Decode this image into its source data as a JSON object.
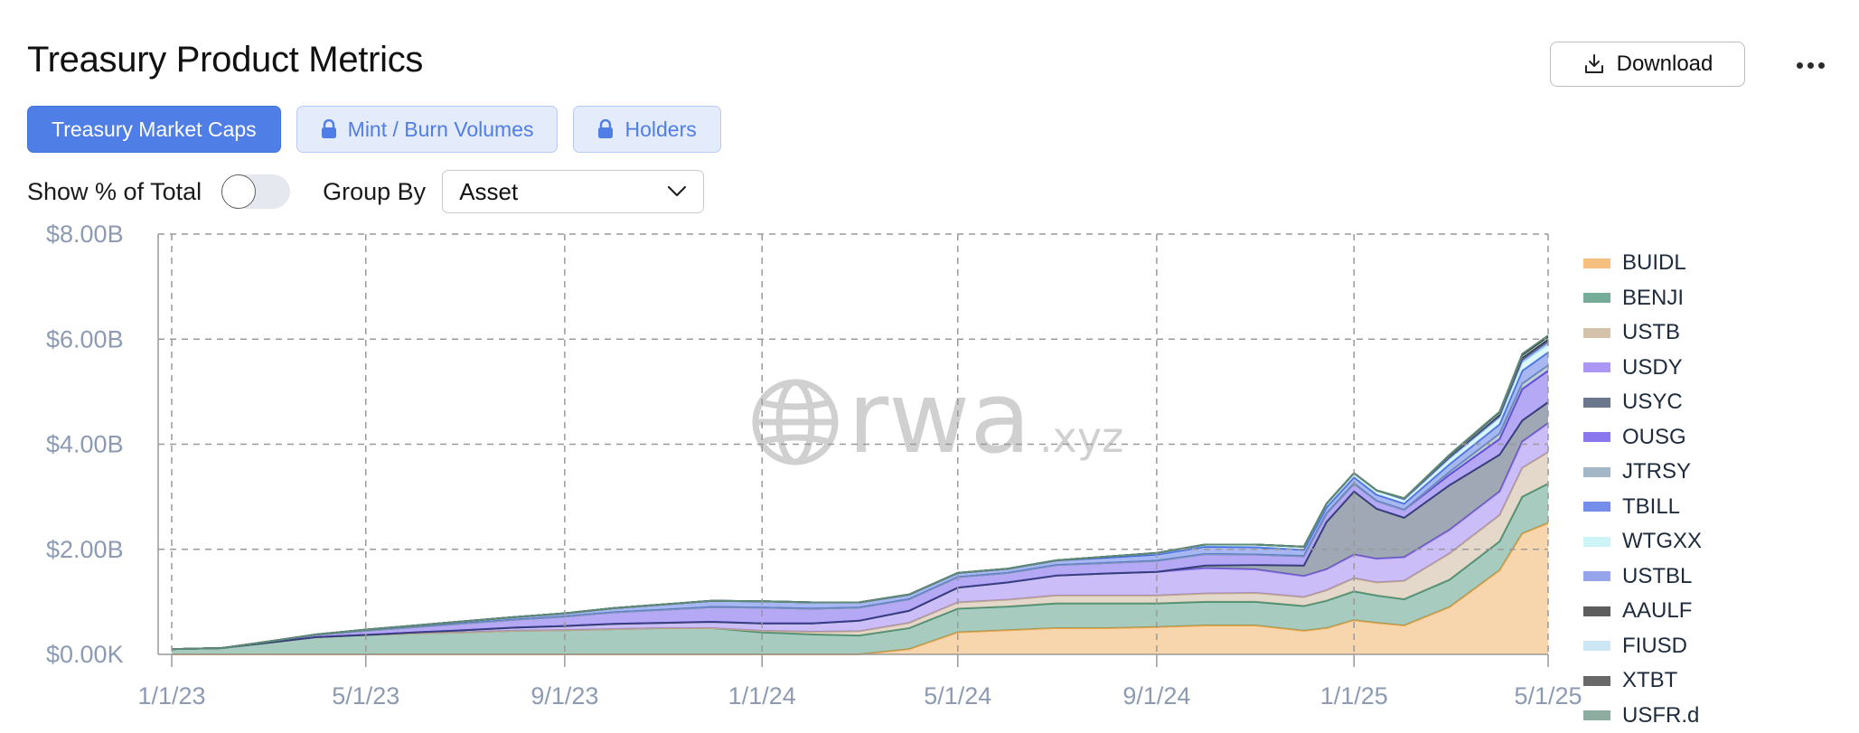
{
  "header": {
    "title": "Treasury Product Metrics",
    "download_label": "Download",
    "download_icon": "download-icon",
    "more_icon": "more-horizontal-icon"
  },
  "tabs": [
    {
      "label": "Treasury Market Caps",
      "active": true,
      "locked": false
    },
    {
      "label": "Mint / Burn Volumes",
      "active": false,
      "locked": true
    },
    {
      "label": "Holders",
      "active": false,
      "locked": true
    }
  ],
  "controls": {
    "show_pct_label": "Show % of Total",
    "show_pct_on": false,
    "group_by_label": "Group By",
    "group_by_value": "Asset"
  },
  "watermark": {
    "brand": "rwa",
    "suffix": ".xyz"
  },
  "colors": {
    "accent": "#4f7ee6",
    "grid": "#9a9a9a",
    "axis_text": "#8c9bb3"
  },
  "chart_data": {
    "type": "area",
    "stacked": true,
    "title": "",
    "xlabel": "",
    "ylabel": "",
    "x_ticks": [
      "1/1/23",
      "5/1/23",
      "9/1/23",
      "1/1/24",
      "5/1/24",
      "9/1/24",
      "1/1/25",
      "5/1/25"
    ],
    "y_ticks": [
      "$0.00K",
      "$2.00B",
      "$4.00B",
      "$6.00B",
      "$8.00B"
    ],
    "ylim": [
      0,
      8
    ],
    "y_unit": "$B",
    "grid": true,
    "legend_position": "right",
    "x": [
      "1/1/23",
      "2/1/23",
      "3/1/23",
      "4/1/23",
      "5/1/23",
      "6/1/23",
      "7/1/23",
      "8/1/23",
      "9/1/23",
      "10/1/23",
      "11/1/23",
      "12/1/23",
      "1/1/24",
      "2/1/24",
      "3/1/24",
      "4/1/24",
      "5/1/24",
      "6/1/24",
      "7/1/24",
      "8/1/24",
      "9/1/24",
      "10/1/24",
      "11/1/24",
      "12/1/24",
      "12/15/24",
      "1/1/25",
      "1/15/25",
      "2/1/25",
      "3/1/25",
      "4/1/25",
      "4/15/25",
      "5/1/25"
    ],
    "series": [
      {
        "name": "BUIDL",
        "color": "#f0a54a",
        "values": [
          0,
          0,
          0,
          0,
          0,
          0,
          0,
          0,
          0,
          0,
          0,
          0,
          0,
          0,
          0,
          0.1,
          0.42,
          0.46,
          0.5,
          0.5,
          0.52,
          0.55,
          0.55,
          0.45,
          0.5,
          0.65,
          0.6,
          0.55,
          0.9,
          1.6,
          2.3,
          2.5
        ]
      },
      {
        "name": "BENJI",
        "color": "#3b8b6e",
        "values": [
          0.1,
          0.12,
          0.22,
          0.33,
          0.37,
          0.4,
          0.42,
          0.45,
          0.46,
          0.48,
          0.5,
          0.5,
          0.42,
          0.38,
          0.36,
          0.4,
          0.45,
          0.45,
          0.47,
          0.47,
          0.45,
          0.45,
          0.45,
          0.47,
          0.52,
          0.55,
          0.52,
          0.5,
          0.52,
          0.55,
          0.7,
          0.75
        ]
      },
      {
        "name": "USTB",
        "color": "#c2a988",
        "values": [
          0,
          0,
          0,
          0,
          0,
          0,
          0,
          0,
          0,
          0,
          0,
          0,
          0.03,
          0.05,
          0.08,
          0.1,
          0.12,
          0.13,
          0.15,
          0.15,
          0.15,
          0.16,
          0.17,
          0.17,
          0.2,
          0.25,
          0.25,
          0.35,
          0.5,
          0.5,
          0.55,
          0.6
        ]
      },
      {
        "name": "USDY",
        "color": "#8a6cf0",
        "values": [
          0,
          0,
          0,
          0,
          0,
          0.02,
          0.04,
          0.06,
          0.08,
          0.1,
          0.1,
          0.12,
          0.14,
          0.16,
          0.2,
          0.23,
          0.28,
          0.33,
          0.38,
          0.42,
          0.45,
          0.48,
          0.45,
          0.4,
          0.4,
          0.45,
          0.45,
          0.45,
          0.45,
          0.45,
          0.5,
          0.55
        ]
      },
      {
        "name": "USYC",
        "color": "#2c3e5d",
        "values": [
          0,
          0,
          0,
          0,
          0,
          0,
          0,
          0,
          0,
          0,
          0,
          0,
          0,
          0,
          0,
          0,
          0,
          0,
          0,
          0,
          0,
          0.05,
          0.08,
          0.2,
          0.9,
          1.2,
          0.95,
          0.75,
          0.85,
          0.7,
          0.4,
          0.4
        ]
      },
      {
        "name": "OUSG",
        "color": "#5a3de6",
        "values": [
          0,
          0,
          0.02,
          0.05,
          0.08,
          0.1,
          0.13,
          0.15,
          0.18,
          0.22,
          0.25,
          0.28,
          0.3,
          0.28,
          0.25,
          0.22,
          0.2,
          0.18,
          0.2,
          0.2,
          0.21,
          0.22,
          0.2,
          0.18,
          0.16,
          0.15,
          0.15,
          0.15,
          0.2,
          0.3,
          0.6,
          0.6
        ]
      },
      {
        "name": "JTRSY",
        "color": "#7d9ab0",
        "values": [
          0,
          0,
          0,
          0,
          0,
          0,
          0,
          0,
          0,
          0,
          0,
          0,
          0,
          0,
          0,
          0,
          0,
          0,
          0,
          0,
          0,
          0,
          0,
          0,
          0,
          0,
          0,
          0,
          0.05,
          0.1,
          0.1,
          0.1
        ]
      },
      {
        "name": "TBILL",
        "color": "#3a5fe0",
        "values": [
          0,
          0,
          0,
          0,
          0.02,
          0.03,
          0.04,
          0.05,
          0.06,
          0.08,
          0.1,
          0.12,
          0.12,
          0.12,
          0.1,
          0.09,
          0.08,
          0.08,
          0.09,
          0.1,
          0.12,
          0.14,
          0.14,
          0.12,
          0.12,
          0.12,
          0.12,
          0.12,
          0.15,
          0.18,
          0.25,
          0.25
        ]
      },
      {
        "name": "WTGXX",
        "color": "#b9f0f5",
        "values": [
          0,
          0,
          0,
          0,
          0,
          0,
          0,
          0,
          0,
          0,
          0,
          0,
          0,
          0,
          0,
          0,
          0,
          0,
          0,
          0.02,
          0.03,
          0.04,
          0.05,
          0.06,
          0.07,
          0.08,
          0.08,
          0.08,
          0.1,
          0.12,
          0.15,
          0.15
        ]
      },
      {
        "name": "USTBL",
        "color": "#6a7fe0",
        "values": [
          0,
          0,
          0,
          0,
          0,
          0,
          0,
          0,
          0,
          0,
          0,
          0,
          0,
          0,
          0,
          0,
          0,
          0,
          0,
          0,
          0,
          0,
          0,
          0,
          0,
          0,
          0,
          0,
          0.02,
          0.03,
          0.05,
          0.05
        ]
      },
      {
        "name": "AAULF",
        "color": "#1a1a1a",
        "values": [
          0,
          0,
          0,
          0,
          0,
          0,
          0,
          0,
          0,
          0,
          0,
          0,
          0,
          0,
          0,
          0,
          0,
          0,
          0,
          0,
          0,
          0,
          0,
          0,
          0,
          0,
          0,
          0.02,
          0.03,
          0.04,
          0.05,
          0.05
        ]
      },
      {
        "name": "FIUSD",
        "color": "#b7dcf0",
        "values": [
          0,
          0,
          0,
          0,
          0,
          0,
          0,
          0,
          0,
          0,
          0,
          0,
          0,
          0,
          0,
          0,
          0,
          0,
          0,
          0,
          0,
          0,
          0,
          0,
          0,
          0,
          0,
          0,
          0.01,
          0.02,
          0.03,
          0.03
        ]
      },
      {
        "name": "XTBT",
        "color": "#2a2a2a",
        "values": [
          0,
          0,
          0,
          0,
          0,
          0,
          0,
          0,
          0,
          0,
          0,
          0,
          0,
          0,
          0,
          0,
          0,
          0,
          0,
          0,
          0,
          0,
          0,
          0,
          0,
          0,
          0,
          0,
          0.01,
          0.02,
          0.02,
          0.02
        ]
      },
      {
        "name": "USFR.d",
        "color": "#5e8a78",
        "values": [
          0,
          0,
          0,
          0,
          0,
          0,
          0,
          0,
          0,
          0,
          0,
          0,
          0,
          0,
          0,
          0,
          0,
          0,
          0,
          0,
          0,
          0,
          0,
          0,
          0,
          0,
          0,
          0,
          0.01,
          0.01,
          0.02,
          0.02
        ]
      }
    ]
  }
}
